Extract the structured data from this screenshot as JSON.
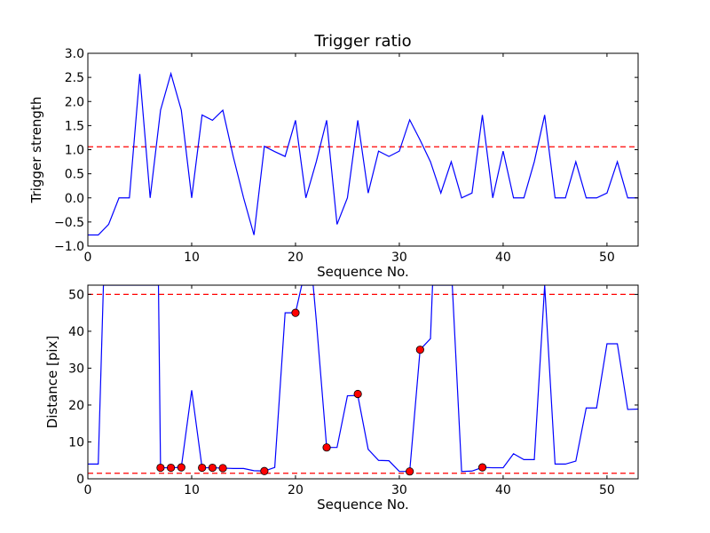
{
  "chart_data": [
    {
      "type": "line",
      "title": "Trigger ratio",
      "xlabel": "Sequence No.",
      "ylabel": "Trigger strength",
      "xlim": [
        0,
        53
      ],
      "ylim": [
        -1.0,
        3.0
      ],
      "xticks": [
        0,
        10,
        20,
        30,
        40,
        50
      ],
      "yticks": [
        -1.0,
        -0.5,
        0.0,
        0.5,
        1.0,
        1.5,
        2.0,
        2.5,
        3.0
      ],
      "ytick_labels": [
        "−1.0",
        "−0.5",
        "0.0",
        "0.5",
        "1.0",
        "1.5",
        "2.0",
        "2.5",
        "3.0"
      ],
      "grid": false,
      "series": [
        {
          "color": "#0000ff",
          "x": [
            0,
            1,
            2,
            3,
            4,
            5,
            6,
            7,
            8,
            9,
            10,
            11,
            12,
            13,
            14,
            15,
            16,
            17,
            18,
            19,
            20,
            21,
            22,
            23,
            24,
            25,
            26,
            27,
            28,
            29,
            30,
            31,
            32,
            33,
            34,
            35,
            36,
            37,
            38,
            39,
            40,
            41,
            42,
            43,
            44,
            45,
            46,
            47,
            48,
            49,
            50,
            51,
            52,
            53
          ],
          "values": [
            -0.77,
            -0.77,
            -0.55,
            0.0,
            0.0,
            2.57,
            0.0,
            1.82,
            2.58,
            1.82,
            0.0,
            1.72,
            1.61,
            1.82,
            0.86,
            0.0,
            -0.77,
            1.07,
            0.96,
            0.86,
            1.61,
            0.0,
            0.75,
            1.61,
            -0.55,
            0.0,
            1.61,
            0.1,
            0.97,
            0.86,
            0.97,
            1.62,
            1.2,
            0.75,
            0.1,
            0.75,
            0.0,
            0.1,
            1.72,
            0.0,
            0.97,
            0.0,
            0.0,
            0.75,
            1.72,
            0.0,
            0.0,
            0.75,
            0.0,
            0.0,
            0.1,
            0.75,
            0.0,
            0.0
          ]
        }
      ],
      "hlines": [
        {
          "y": 1.06,
          "color": "#ff0000",
          "style": "dashed"
        }
      ]
    },
    {
      "type": "line",
      "title": "",
      "xlabel": "Sequence No.",
      "ylabel": "Distance [pix]",
      "xlim": [
        0,
        53
      ],
      "ylim": [
        0,
        52.5
      ],
      "xticks": [
        0,
        10,
        20,
        30,
        40,
        50
      ],
      "yticks": [
        0,
        10,
        20,
        30,
        40,
        50
      ],
      "grid": false,
      "series": [
        {
          "color": "#0000ff",
          "x": [
            0,
            1,
            1.5,
            6.8,
            7,
            8,
            9,
            10,
            11,
            12,
            13,
            14,
            15,
            16,
            17,
            18,
            19,
            20,
            20.6,
            21.7,
            22,
            23,
            24,
            25,
            26,
            27,
            28,
            29,
            30,
            31,
            32,
            33,
            33.2,
            35.1,
            36,
            37,
            38,
            39,
            40,
            41,
            42,
            43,
            44,
            45,
            46,
            47,
            48,
            49,
            50,
            51,
            52,
            53
          ],
          "values": [
            4,
            4,
            52.5,
            52.5,
            3,
            3,
            3.1,
            24,
            3,
            3,
            2.9,
            2.8,
            2.8,
            2.2,
            2.1,
            3.1,
            45,
            45,
            52.5,
            52.5,
            43,
            8.5,
            8.5,
            22.5,
            22.6,
            8,
            5,
            4.9,
            2,
            2,
            35,
            38,
            52.5,
            52.5,
            2,
            2.1,
            3.1,
            3,
            3,
            6.8,
            5.2,
            5.2,
            52.5,
            4,
            4,
            4.8,
            19.2,
            19.2,
            36.6,
            36.6,
            18.8,
            18.9
          ]
        }
      ],
      "markers": {
        "color": "#ff0000",
        "points": [
          [
            7,
            3
          ],
          [
            8,
            3
          ],
          [
            9,
            3.1
          ],
          [
            11,
            3
          ],
          [
            12,
            3
          ],
          [
            13,
            2.9
          ],
          [
            17,
            2.1
          ],
          [
            20,
            45
          ],
          [
            23,
            8.5
          ],
          [
            26,
            23
          ],
          [
            31,
            2
          ],
          [
            32,
            35
          ],
          [
            38,
            3.1
          ]
        ]
      },
      "hlines": [
        {
          "y": 50,
          "color": "#ff0000",
          "style": "dashed"
        },
        {
          "y": 1.5,
          "color": "#ff0000",
          "style": "dashed"
        }
      ]
    }
  ]
}
